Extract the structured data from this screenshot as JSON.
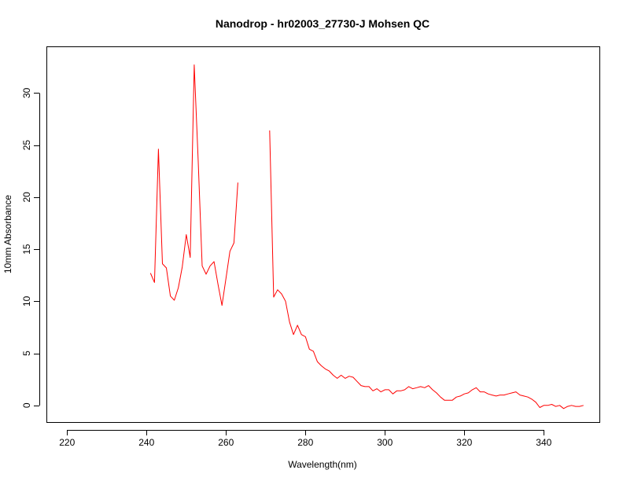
{
  "chart_data": {
    "type": "line",
    "title": "Nanodrop - hr02003_27730-J Mohsen QC",
    "xlabel": "Wavelength(nm)",
    "ylabel": "10mm Absorbance",
    "xlim": [
      215,
      354
    ],
    "ylim": [
      -1.6,
      34.4
    ],
    "xticks": [
      220,
      240,
      260,
      280,
      300,
      320,
      340
    ],
    "yticks": [
      0,
      5,
      10,
      15,
      20,
      25,
      30
    ],
    "grid": false,
    "legend": "none",
    "series": [
      {
        "color": "#ff0000",
        "segments": [
          {
            "x": [
              241,
              242,
              243,
              244,
              245,
              246,
              247,
              248,
              249,
              250,
              251,
              252,
              253,
              254,
              255,
              256,
              257,
              258,
              259,
              260,
              261,
              262,
              263
            ],
            "y": [
              12.7,
              11.8,
              24.6,
              13.6,
              13.2,
              10.5,
              10.1,
              11.3,
              13.3,
              16.4,
              14.2,
              32.7,
              23.6,
              13.4,
              12.6,
              13.4,
              13.8,
              11.6,
              9.6,
              12.2,
              14.8,
              15.6,
              21.4
            ]
          },
          {
            "x": [
              271,
              272,
              273,
              274,
              275,
              276,
              277,
              278,
              279,
              280,
              281,
              282,
              283,
              284,
              285,
              286,
              287,
              288,
              289,
              290,
              291,
              292,
              293,
              294,
              295,
              296,
              297,
              298,
              299,
              300,
              301,
              302,
              303,
              304,
              305,
              306,
              307,
              308,
              309,
              310,
              311,
              312,
              313,
              314,
              315,
              316,
              317,
              318,
              319,
              320,
              321,
              322,
              323,
              324,
              325,
              326,
              327,
              328,
              329,
              330,
              331,
              332,
              333,
              334,
              335,
              336,
              337,
              338,
              339,
              340,
              341,
              342,
              343,
              344,
              345,
              346,
              347,
              348,
              349,
              350
            ],
            "y": [
              26.4,
              10.4,
              11.1,
              10.7,
              10.0,
              8.0,
              6.8,
              7.7,
              6.8,
              6.6,
              5.4,
              5.2,
              4.2,
              3.8,
              3.5,
              3.3,
              2.9,
              2.6,
              2.9,
              2.6,
              2.8,
              2.7,
              2.3,
              1.9,
              1.8,
              1.8,
              1.4,
              1.6,
              1.3,
              1.5,
              1.5,
              1.1,
              1.4,
              1.4,
              1.5,
              1.8,
              1.6,
              1.7,
              1.8,
              1.7,
              1.9,
              1.5,
              1.2,
              0.8,
              0.5,
              0.5,
              0.5,
              0.8,
              0.9,
              1.1,
              1.2,
              1.5,
              1.7,
              1.3,
              1.3,
              1.1,
              1.0,
              0.9,
              1.0,
              1.0,
              1.1,
              1.2,
              1.3,
              1.0,
              0.9,
              0.8,
              0.6,
              0.3,
              -0.2,
              0.0,
              0.0,
              0.1,
              -0.1,
              0.0,
              -0.3,
              -0.1,
              0.0,
              -0.1,
              -0.1,
              0.0
            ]
          }
        ]
      }
    ]
  }
}
